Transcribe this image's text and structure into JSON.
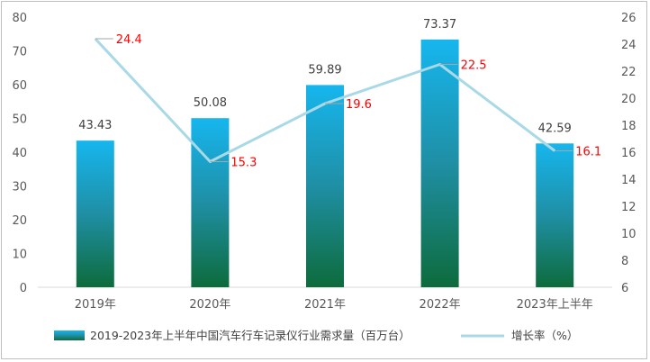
{
  "chart_data": {
    "type": "bar",
    "categories": [
      "2019年",
      "2020年",
      "2021年",
      "2022年",
      "2023年上半年"
    ],
    "series": [
      {
        "name": "2019-2023年上半年中国汽车行车记录仪行业需求量（百万台）",
        "type": "bar",
        "axis": "left",
        "values": [
          43.43,
          50.08,
          59.89,
          73.37,
          42.59
        ]
      },
      {
        "name": "增长率（%）",
        "type": "line",
        "axis": "right",
        "values": [
          24.4,
          15.3,
          19.6,
          22.5,
          16.1
        ]
      }
    ],
    "bar_labels": [
      "43.43",
      "50.08",
      "59.89",
      "73.37",
      "42.59"
    ],
    "line_labels": [
      "24.4",
      "15.3",
      "19.6",
      "22.5",
      "16.1"
    ],
    "ylim_left": [
      0,
      80
    ],
    "ylim_right": [
      6,
      26
    ],
    "yticks_left": [
      "0",
      "10",
      "20",
      "30",
      "40",
      "50",
      "60",
      "70",
      "80"
    ],
    "yticks_right": [
      "6",
      "8",
      "10",
      "12",
      "14",
      "16",
      "18",
      "20",
      "22",
      "24",
      "26"
    ],
    "legend_position": "bottom",
    "colors": {
      "bar_top": "#16b6ee",
      "bar_mid": "#1f8fa5",
      "bar_bottom": "#0d6b3c",
      "line": "#a9d9e6",
      "rate_label": "#ff0000"
    }
  }
}
